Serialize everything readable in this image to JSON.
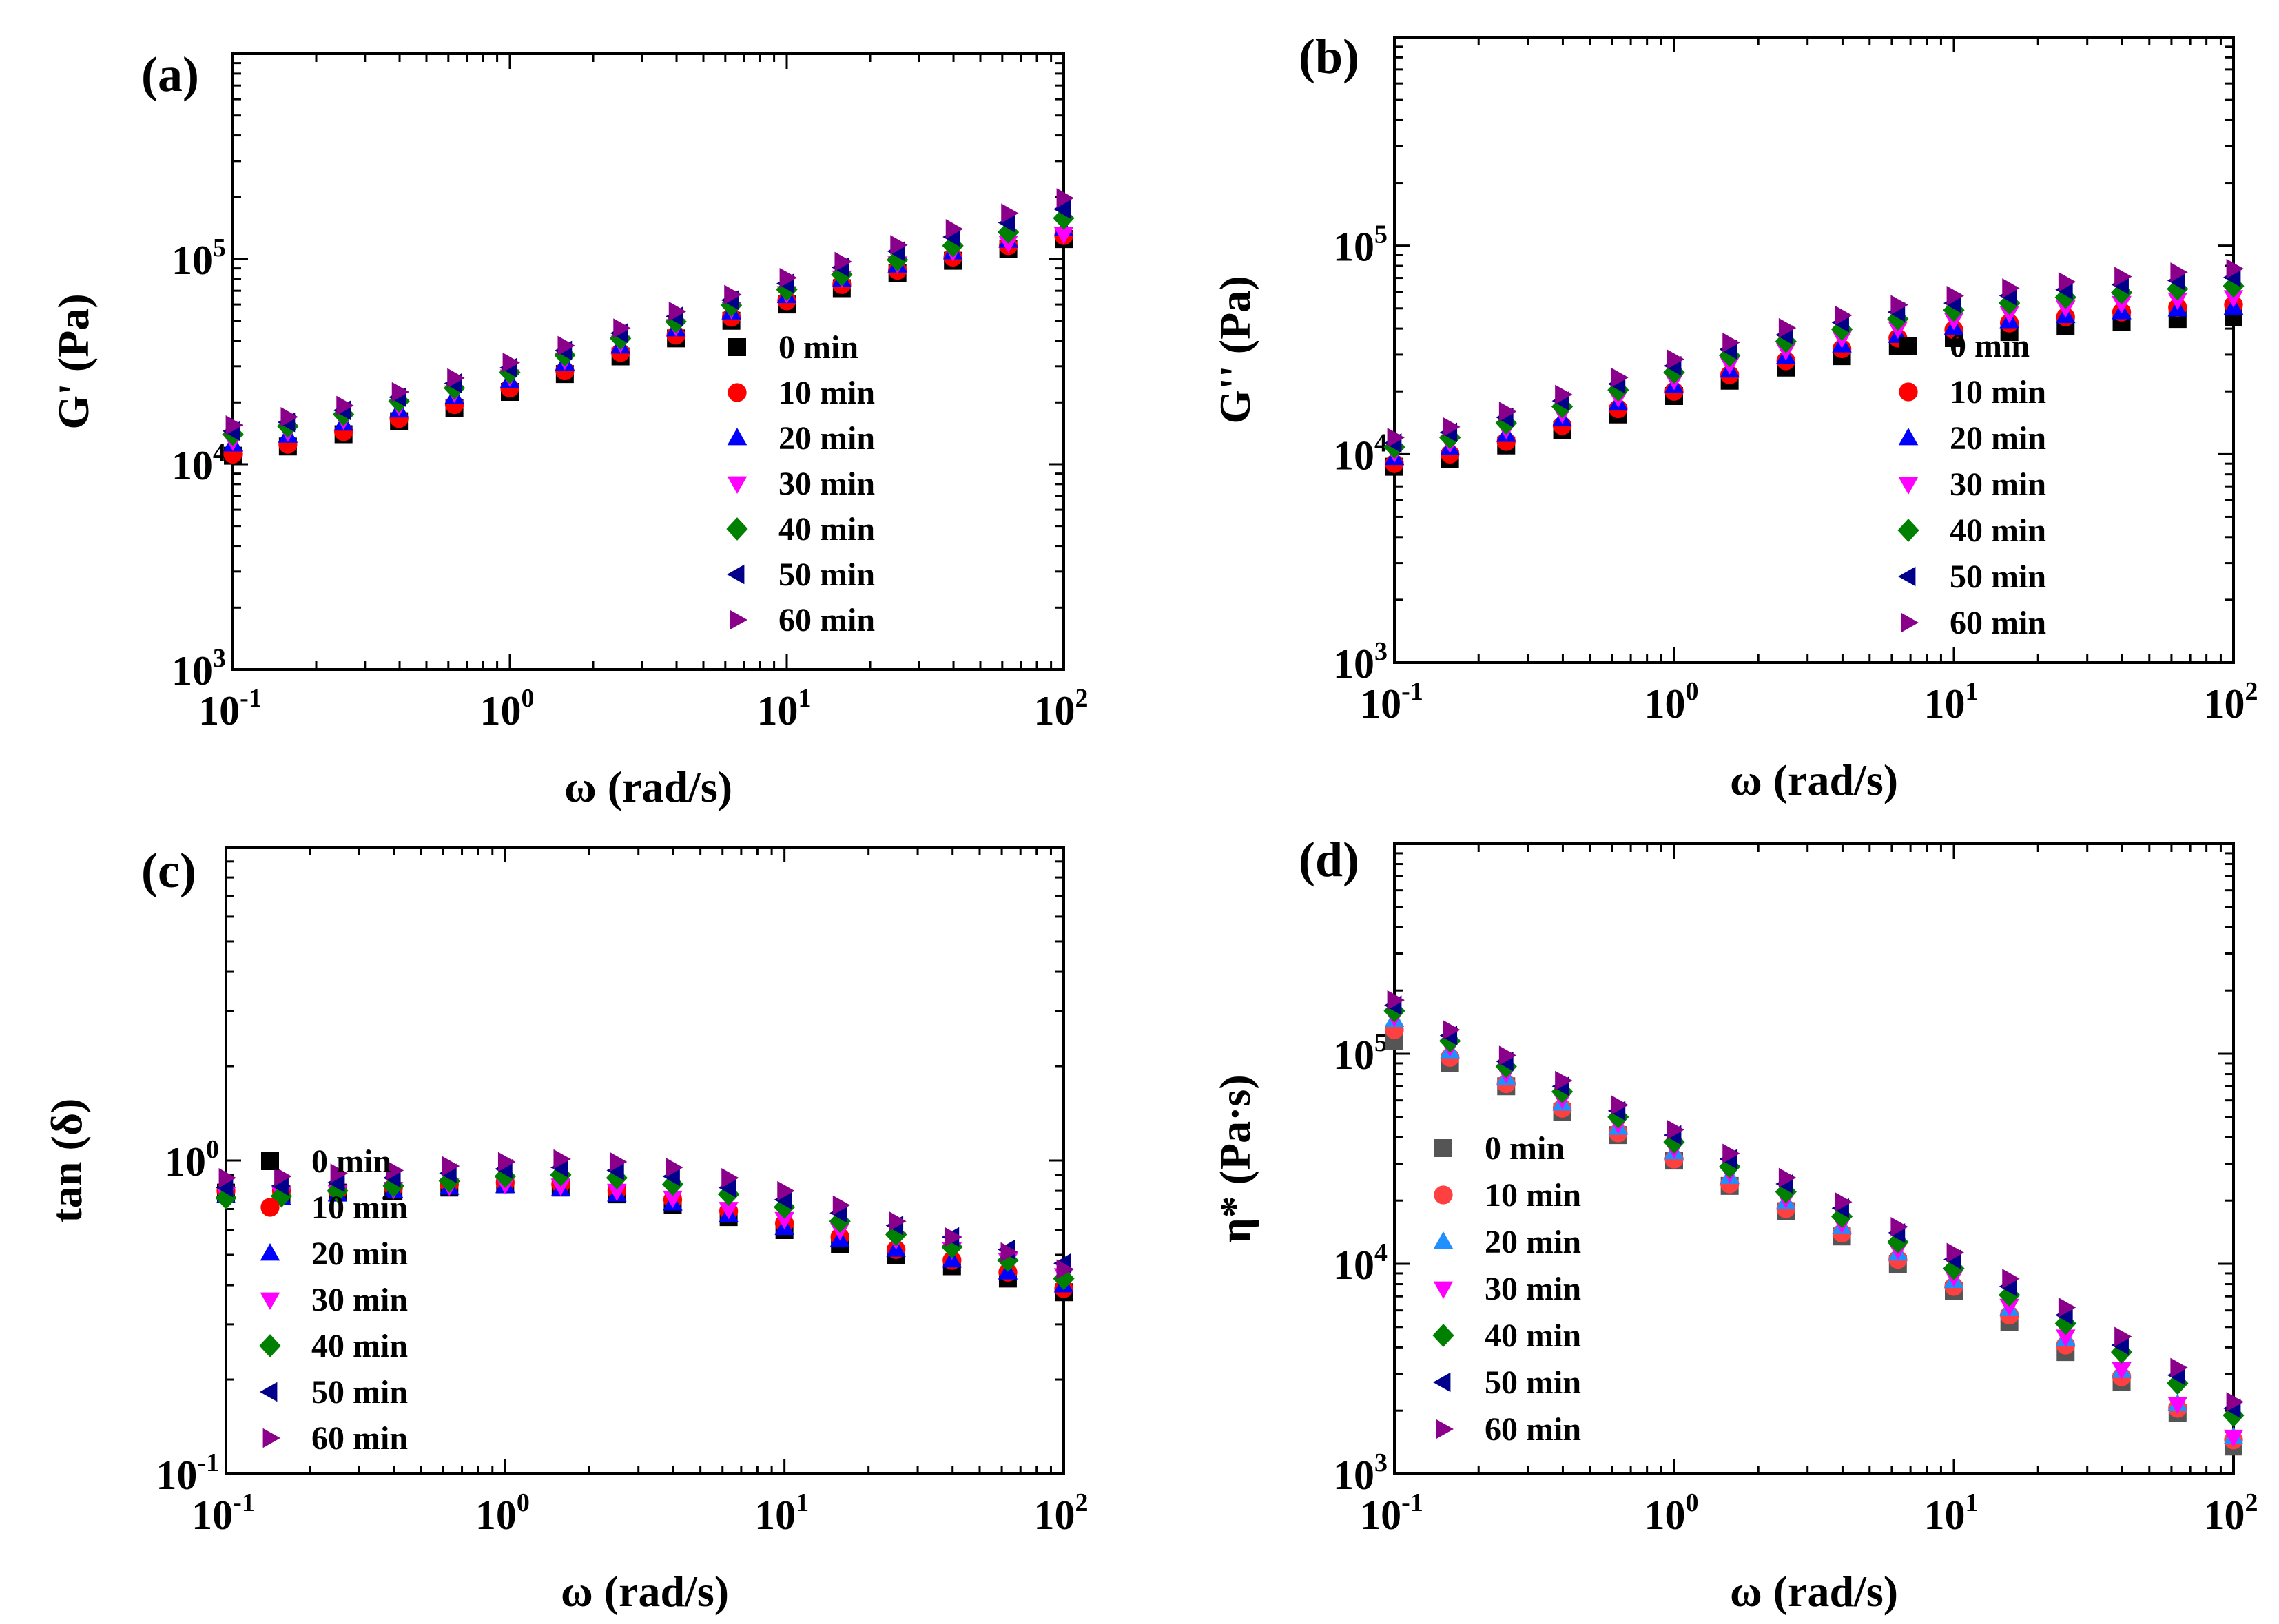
{
  "chart_data": [
    {
      "type": "scatter",
      "panel": "(a)",
      "xlabel": "ω (rad/s)",
      "ylabel": "G' (Pa)",
      "xscale": "log",
      "yscale": "log",
      "xlim": [
        0.1,
        100
      ],
      "ylim": [
        1000,
        1000000
      ],
      "xticks": [
        {
          "base": "10",
          "exp": "-1"
        },
        {
          "base": "10",
          "exp": "0"
        },
        {
          "base": "10",
          "exp": "1"
        },
        {
          "base": "10",
          "exp": "2"
        }
      ],
      "yticks": [
        {
          "base": "10",
          "exp": "3"
        },
        {
          "base": "10",
          "exp": "4"
        },
        {
          "base": "10",
          "exp": "5"
        }
      ],
      "legend_position": "center-right",
      "x": [
        0.1,
        0.158,
        0.251,
        0.398,
        0.631,
        1,
        1.58,
        2.51,
        3.98,
        6.31,
        10,
        15.8,
        25.1,
        39.8,
        63.1,
        100
      ],
      "series": [
        {
          "name": "0 min",
          "color": "#000000",
          "marker": "square",
          "values": [
            11000,
            12200,
            14000,
            16200,
            18800,
            22500,
            27500,
            33500,
            41000,
            50000,
            60000,
            72000,
            85000,
            98000,
            112000,
            125000
          ]
        },
        {
          "name": "10 min",
          "color": "#ff0000",
          "marker": "circle",
          "values": [
            11200,
            12500,
            14400,
            16700,
            19500,
            23500,
            28500,
            35000,
            42500,
            52000,
            62500,
            75000,
            88000,
            102000,
            116000,
            130000
          ]
        },
        {
          "name": "20 min",
          "color": "#0000ff",
          "marker": "triangle-up",
          "values": [
            12500,
            13800,
            15800,
            18300,
            21300,
            25500,
            31000,
            37500,
            45500,
            55000,
            66000,
            79000,
            93000,
            108000,
            123000,
            140000
          ]
        },
        {
          "name": "30 min",
          "color": "#ff00ff",
          "marker": "triangle-down",
          "values": [
            13000,
            14400,
            16500,
            19200,
            22300,
            26700,
            32300,
            39000,
            47000,
            57000,
            68000,
            81000,
            95000,
            109000,
            120000,
            132000
          ]
        },
        {
          "name": "40 min",
          "color": "#008000",
          "marker": "diamond",
          "values": [
            14000,
            15300,
            17500,
            20300,
            23500,
            28000,
            34000,
            41000,
            49500,
            59500,
            71000,
            84000,
            99000,
            116000,
            135000,
            158000
          ]
        },
        {
          "name": "50 min",
          "color": "#00008b",
          "marker": "triangle-left",
          "values": [
            14500,
            16000,
            18300,
            21200,
            24800,
            29500,
            35800,
            43500,
            52500,
            63000,
            76000,
            91000,
            109000,
            128000,
            150000,
            175000
          ]
        },
        {
          "name": "60 min",
          "color": "#8b008b",
          "marker": "triangle-right",
          "values": [
            15500,
            17000,
            19300,
            22500,
            26300,
            31300,
            37800,
            46000,
            55500,
            67000,
            81000,
            97000,
            117000,
            140000,
            167000,
            198000
          ]
        }
      ]
    },
    {
      "type": "scatter",
      "panel": "(b)",
      "xlabel": "ω (rad/s)",
      "ylabel": "G'' (Pa)",
      "xscale": "log",
      "yscale": "log",
      "xlim": [
        0.1,
        100
      ],
      "ylim": [
        1000,
        1000000
      ],
      "xticks": [
        {
          "base": "10",
          "exp": "-1"
        },
        {
          "base": "10",
          "exp": "0"
        },
        {
          "base": "10",
          "exp": "1"
        },
        {
          "base": "10",
          "exp": "2"
        }
      ],
      "yticks": [
        {
          "base": "10",
          "exp": "3"
        },
        {
          "base": "10",
          "exp": "4"
        },
        {
          "base": "10",
          "exp": "5"
        }
      ],
      "legend_position": "center-right",
      "x": [
        0.1,
        0.158,
        0.251,
        0.398,
        0.631,
        1,
        1.58,
        2.51,
        3.98,
        6.31,
        10,
        15.8,
        25.1,
        39.8,
        63.1,
        100
      ],
      "series": [
        {
          "name": "0 min",
          "color": "#000000",
          "marker": "square",
          "values": [
            8700,
            9500,
            11000,
            13000,
            15500,
            19000,
            22500,
            26000,
            29500,
            33000,
            36000,
            38500,
            41000,
            43000,
            44500,
            45500
          ]
        },
        {
          "name": "10 min",
          "color": "#ff0000",
          "marker": "circle",
          "values": [
            9000,
            10000,
            11500,
            13700,
            16500,
            20000,
            24000,
            28000,
            32000,
            36000,
            39500,
            42500,
            45500,
            48000,
            50500,
            52000
          ]
        },
        {
          "name": "20 min",
          "color": "#0000ff",
          "marker": "triangle-up",
          "values": [
            9600,
            10700,
            12400,
            14700,
            17500,
            21200,
            25200,
            29300,
            33300,
            37000,
            40500,
            43500,
            46000,
            48000,
            49500,
            50500
          ]
        },
        {
          "name": "30 min",
          "color": "#ff00ff",
          "marker": "triangle-down",
          "values": [
            10200,
            11300,
            13200,
            15700,
            18700,
            22700,
            27000,
            31500,
            36000,
            40000,
            44000,
            47500,
            50500,
            53000,
            55000,
            56500
          ]
        },
        {
          "name": "40 min",
          "color": "#008000",
          "marker": "diamond",
          "values": [
            10800,
            12000,
            14100,
            16900,
            20300,
            24700,
            29700,
            34700,
            39700,
            44500,
            49000,
            53000,
            56500,
            59500,
            62000,
            64000
          ]
        },
        {
          "name": "50 min",
          "color": "#00008b",
          "marker": "triangle-left",
          "values": [
            11300,
            12700,
            15000,
            18000,
            21700,
            26500,
            31800,
            37300,
            42800,
            48000,
            53000,
            57500,
            61500,
            65000,
            68000,
            70500
          ]
        },
        {
          "name": "60 min",
          "color": "#8b008b",
          "marker": "triangle-right",
          "values": [
            12000,
            13500,
            16000,
            19300,
            23300,
            28500,
            34300,
            40300,
            46300,
            52000,
            57500,
            62500,
            67000,
            71000,
            74500,
            77500
          ]
        }
      ]
    },
    {
      "type": "scatter",
      "panel": "(c)",
      "xlabel": "ω (rad/s)",
      "ylabel": "tan (δ)",
      "xscale": "log",
      "yscale": "log",
      "xlim": [
        0.1,
        100
      ],
      "ylim": [
        0.1,
        10
      ],
      "xticks": [
        {
          "base": "10",
          "exp": "-1"
        },
        {
          "base": "10",
          "exp": "0"
        },
        {
          "base": "10",
          "exp": "1"
        },
        {
          "base": "10",
          "exp": "2"
        }
      ],
      "yticks": [
        {
          "base": "10",
          "exp": "-1"
        },
        {
          "base": "10",
          "exp": "0"
        }
      ],
      "legend_position": "lower-left",
      "x": [
        0.1,
        0.158,
        0.251,
        0.398,
        0.631,
        1,
        1.58,
        2.51,
        3.98,
        6.31,
        10,
        15.8,
        25.1,
        39.8,
        63.1,
        100
      ],
      "series": [
        {
          "name": "0 min",
          "color": "#000000",
          "marker": "square",
          "values": [
            0.79,
            0.78,
            0.79,
            0.8,
            0.82,
            0.84,
            0.82,
            0.78,
            0.72,
            0.66,
            0.6,
            0.54,
            0.5,
            0.46,
            0.42,
            0.38
          ]
        },
        {
          "name": "10 min",
          "color": "#ff0000",
          "marker": "circle",
          "values": [
            0.8,
            0.8,
            0.8,
            0.82,
            0.84,
            0.85,
            0.84,
            0.8,
            0.75,
            0.69,
            0.63,
            0.57,
            0.52,
            0.48,
            0.44,
            0.39
          ]
        },
        {
          "name": "20 min",
          "color": "#0000ff",
          "marker": "triangle-up",
          "values": [
            0.77,
            0.76,
            0.78,
            0.8,
            0.82,
            0.83,
            0.81,
            0.78,
            0.73,
            0.67,
            0.61,
            0.56,
            0.52,
            0.48,
            0.44,
            0.4
          ]
        },
        {
          "name": "30 min",
          "color": "#ff00ff",
          "marker": "triangle-down",
          "values": [
            0.78,
            0.78,
            0.79,
            0.81,
            0.83,
            0.84,
            0.83,
            0.8,
            0.76,
            0.7,
            0.65,
            0.6,
            0.56,
            0.52,
            0.48,
            0.43
          ]
        },
        {
          "name": "40 min",
          "color": "#008000",
          "marker": "diamond",
          "values": [
            0.76,
            0.77,
            0.8,
            0.83,
            0.86,
            0.89,
            0.9,
            0.88,
            0.84,
            0.78,
            0.71,
            0.64,
            0.58,
            0.53,
            0.48,
            0.42
          ]
        },
        {
          "name": "50 min",
          "color": "#00008b",
          "marker": "triangle-left",
          "values": [
            0.82,
            0.83,
            0.85,
            0.88,
            0.91,
            0.94,
            0.95,
            0.93,
            0.89,
            0.82,
            0.75,
            0.68,
            0.62,
            0.57,
            0.52,
            0.47
          ]
        },
        {
          "name": "60 min",
          "color": "#8b008b",
          "marker": "triangle-right",
          "values": [
            0.88,
            0.89,
            0.91,
            0.93,
            0.96,
            0.99,
            1.01,
            0.99,
            0.95,
            0.88,
            0.8,
            0.72,
            0.64,
            0.57,
            0.51,
            0.45
          ]
        }
      ]
    },
    {
      "type": "scatter",
      "panel": "(d)",
      "xlabel": "ω (rad/s)",
      "ylabel": "η* (Pa·s)",
      "xscale": "log",
      "yscale": "log",
      "xlim": [
        0.1,
        100
      ],
      "ylim": [
        1000,
        1000000
      ],
      "xticks": [
        {
          "base": "10",
          "exp": "-1"
        },
        {
          "base": "10",
          "exp": "0"
        },
        {
          "base": "10",
          "exp": "1"
        },
        {
          "base": "10",
          "exp": "2"
        }
      ],
      "yticks": [
        {
          "base": "10",
          "exp": "3"
        },
        {
          "base": "10",
          "exp": "4"
        },
        {
          "base": "10",
          "exp": "5"
        }
      ],
      "legend_position": "lower-left",
      "x": [
        0.1,
        0.158,
        0.251,
        0.398,
        0.631,
        1,
        1.58,
        2.51,
        3.98,
        6.31,
        10,
        15.8,
        25.1,
        39.8,
        63.1,
        100
      ],
      "series": [
        {
          "name": "0 min",
          "color": "#555555",
          "marker": "square",
          "values": [
            115000,
            90000,
            70000,
            53000,
            41000,
            31000,
            23500,
            17800,
            13500,
            10000,
            7400,
            5300,
            3800,
            2750,
            1950,
            1350
          ]
        },
        {
          "name": "10 min",
          "color": "#ff4040",
          "marker": "circle",
          "values": [
            130000,
            96000,
            72000,
            55000,
            42000,
            31500,
            24000,
            18300,
            14000,
            10500,
            7800,
            5700,
            4100,
            2900,
            2050,
            1450
          ]
        },
        {
          "name": "20 min",
          "color": "#1e90ff",
          "marker": "triangle-up",
          "values": [
            145000,
            103000,
            77000,
            58000,
            44500,
            34000,
            26000,
            19700,
            15000,
            11200,
            8300,
            6100,
            4400,
            3100,
            2150,
            1500
          ]
        },
        {
          "name": "30 min",
          "color": "#ff00ff",
          "marker": "triangle-down",
          "values": [
            150000,
            108000,
            81000,
            61000,
            46500,
            35500,
            27200,
            20500,
            15600,
            11700,
            8700,
            6300,
            4500,
            3150,
            2150,
            1500
          ]
        },
        {
          "name": "40 min",
          "color": "#008000",
          "marker": "diamond",
          "values": [
            160000,
            115000,
            87000,
            66000,
            50000,
            38000,
            29000,
            22000,
            16800,
            12700,
            9500,
            7100,
            5200,
            3800,
            2700,
            1900
          ]
        },
        {
          "name": "50 min",
          "color": "#00008b",
          "marker": "triangle-left",
          "values": [
            170000,
            122000,
            92000,
            70000,
            53500,
            41000,
            31500,
            24000,
            18400,
            14000,
            10500,
            7800,
            5700,
            4100,
            2950,
            2050
          ]
        },
        {
          "name": "60 min",
          "color": "#8b008b",
          "marker": "triangle-right",
          "values": [
            180000,
            130000,
            98000,
            74500,
            57000,
            43500,
            33500,
            25700,
            19700,
            15000,
            11300,
            8500,
            6200,
            4500,
            3200,
            2200
          ]
        }
      ]
    }
  ]
}
